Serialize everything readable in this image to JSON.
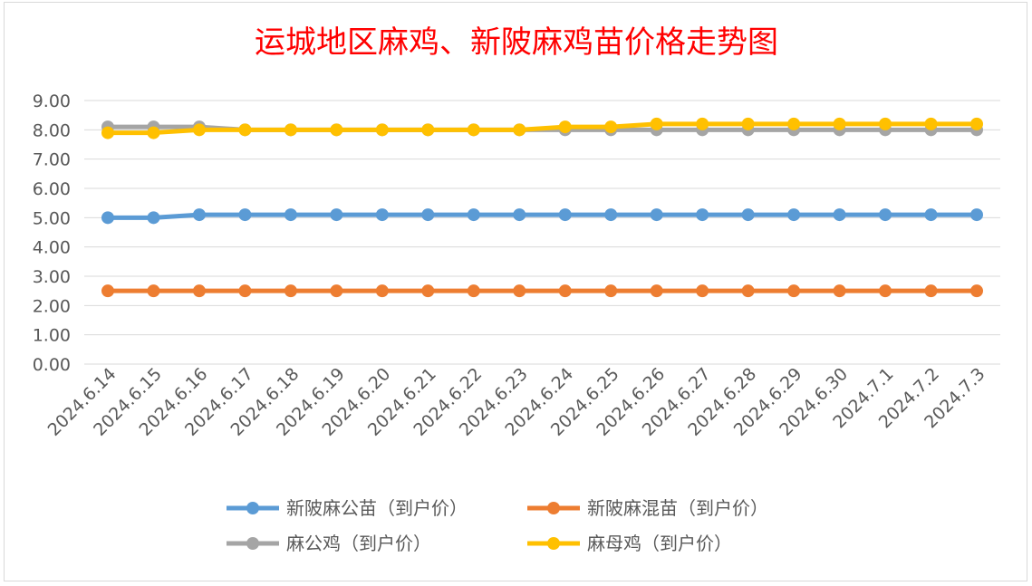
{
  "chart_data": {
    "type": "line",
    "title": "运城地区麻鸡、新陂麻鸡苗价格走势图",
    "categories": [
      "2024.6.14",
      "2024.6.15",
      "2024.6.16",
      "2024.6.17",
      "2024.6.18",
      "2024.6.19",
      "2024.6.20",
      "2024.6.21",
      "2024.6.22",
      "2024.6.23",
      "2024.6.24",
      "2024.6.25",
      "2024.6.26",
      "2024.6.27",
      "2024.6.28",
      "2024.6.29",
      "2024.6.30",
      "2024.7.1",
      "2024.7.2",
      "2024.7.3"
    ],
    "y_ticks": [
      "0.00",
      "1.00",
      "2.00",
      "3.00",
      "4.00",
      "5.00",
      "6.00",
      "7.00",
      "8.00",
      "9.00"
    ],
    "ylim": [
      0,
      9
    ],
    "grid": true,
    "legend_position": "bottom",
    "series": [
      {
        "name": "新陂麻公苗（到户价）",
        "color": "#5b9bd5",
        "values": [
          5.0,
          5.0,
          5.1,
          5.1,
          5.1,
          5.1,
          5.1,
          5.1,
          5.1,
          5.1,
          5.1,
          5.1,
          5.1,
          5.1,
          5.1,
          5.1,
          5.1,
          5.1,
          5.1,
          5.1
        ]
      },
      {
        "name": "新陂麻混苗（到户价）",
        "color": "#ed7d31",
        "values": [
          2.5,
          2.5,
          2.5,
          2.5,
          2.5,
          2.5,
          2.5,
          2.5,
          2.5,
          2.5,
          2.5,
          2.5,
          2.5,
          2.5,
          2.5,
          2.5,
          2.5,
          2.5,
          2.5,
          2.5
        ]
      },
      {
        "name": "麻公鸡（到户价）",
        "color": "#a5a5a5",
        "values": [
          8.1,
          8.1,
          8.1,
          8.0,
          8.0,
          8.0,
          8.0,
          8.0,
          8.0,
          8.0,
          8.0,
          8.0,
          8.0,
          8.0,
          8.0,
          8.0,
          8.0,
          8.0,
          8.0,
          8.0
        ]
      },
      {
        "name": "麻母鸡（到户价）",
        "color": "#ffc000",
        "values": [
          7.9,
          7.9,
          8.0,
          8.0,
          8.0,
          8.0,
          8.0,
          8.0,
          8.0,
          8.0,
          8.1,
          8.1,
          8.2,
          8.2,
          8.2,
          8.2,
          8.2,
          8.2,
          8.2,
          8.2
        ]
      }
    ]
  },
  "colors": {
    "title": "#ff0000",
    "axis_text": "#595959",
    "gridline": "#d9d9d9"
  }
}
